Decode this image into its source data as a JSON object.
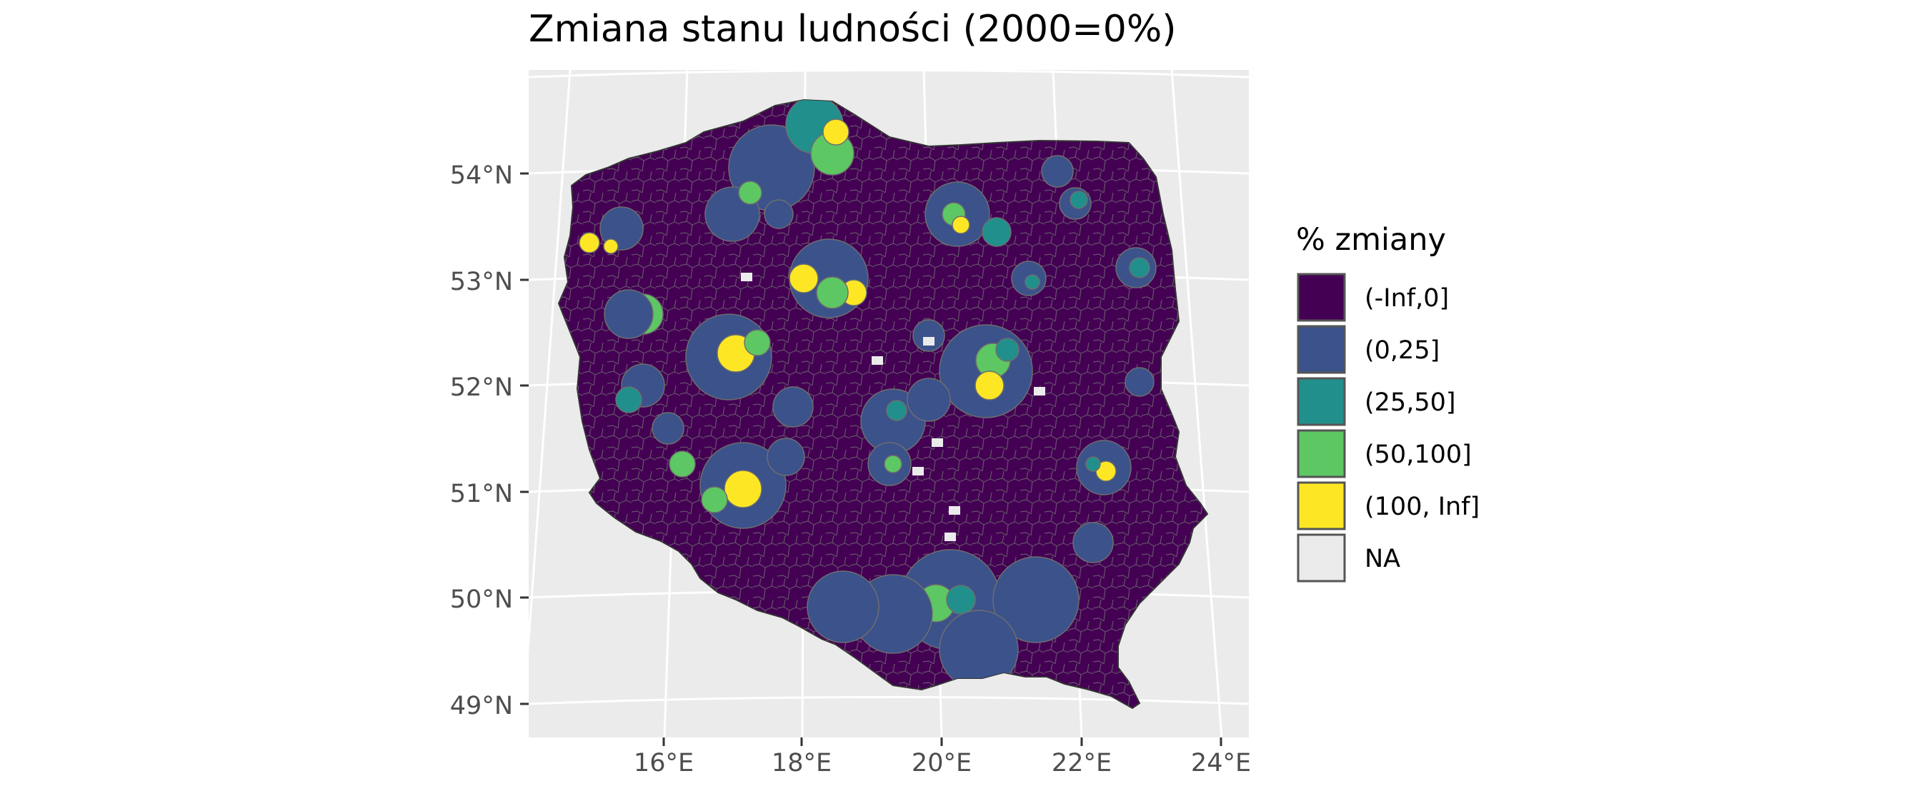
{
  "title": "Zmiana stanu ludności (2000=0%)",
  "map": {
    "projection": "conic",
    "background_color": "#EBEBEB",
    "graticule_color": "#FFFFFF",
    "lat_labels": [
      "54°N",
      "53°N",
      "52°N",
      "51°N",
      "50°N",
      "49°N"
    ],
    "lon_labels": [
      "16°E",
      "18°E",
      "20°E",
      "22°E",
      "24°E"
    ],
    "polygon_border_color": "#6E6E6E",
    "dominant_class": "(-Inf,0]"
  },
  "legend": {
    "title": "% zmiany",
    "position": "right",
    "items": [
      {
        "label": "(-Inf,0]",
        "color": "#440154"
      },
      {
        "label": "(0,25]",
        "color": "#3B528B"
      },
      {
        "label": "(25,50]",
        "color": "#21908C"
      },
      {
        "label": "(50,100]",
        "color": "#5DC863"
      },
      {
        "label": "(100, Inf]",
        "color": "#FDE725"
      },
      {
        "label": "NA",
        "color": "#EBEBEB"
      }
    ]
  }
}
